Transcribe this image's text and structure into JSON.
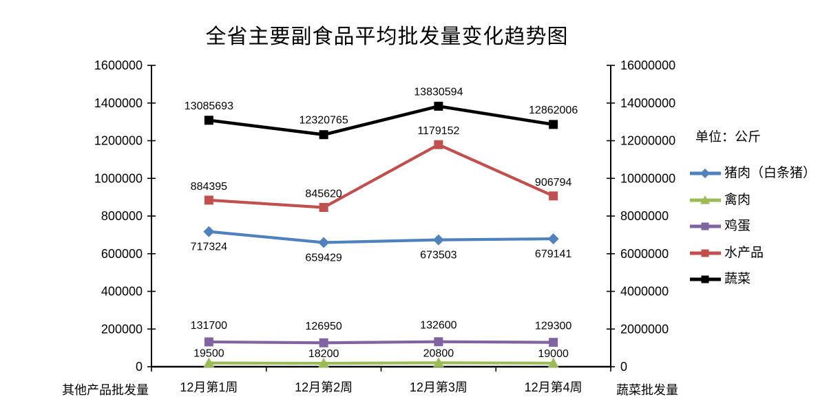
{
  "chart_data": {
    "type": "line",
    "title": "全省主要副食品平均批发量变化趋势图",
    "unit_label": "单位：公斤",
    "categories": [
      "12月第1周",
      "12月第2周",
      "12月第3周",
      "12月第4周"
    ],
    "series": [
      {
        "name": "猪肉（白条猪）",
        "color": "#4F81BD",
        "marker": "diamond",
        "axis": "left",
        "label_position": "below",
        "values": [
          717324,
          659429,
          673503,
          679141
        ]
      },
      {
        "name": "禽肉",
        "color": "#9BBB59",
        "marker": "triangle",
        "axis": "left",
        "label_position": "above",
        "values": [
          19500,
          18200,
          20800,
          19000
        ]
      },
      {
        "name": "鸡蛋",
        "color": "#8064A2",
        "marker": "square",
        "axis": "left",
        "label_position": "above",
        "values": [
          131700,
          126950,
          132600,
          129300
        ]
      },
      {
        "name": "水产品",
        "color": "#C0504D",
        "marker": "square",
        "axis": "left",
        "label_position": "above",
        "values": [
          884395,
          845620,
          1179152,
          906794
        ]
      },
      {
        "name": "蔬菜",
        "color": "#000000",
        "marker": "square",
        "axis": "right",
        "label_position": "above",
        "values": [
          13085693,
          12320765,
          13830594,
          12862006
        ]
      }
    ],
    "left_axis": {
      "title": "其他产品批发量",
      "min": 0,
      "max": 1600000,
      "step": 200000,
      "tick_labels": [
        "0",
        "200000",
        "400000",
        "600000",
        "800000",
        "1000000",
        "1200000",
        "1400000",
        "1600000"
      ]
    },
    "right_axis": {
      "title": "蔬菜批发量",
      "min": 0,
      "max": 16000000,
      "step": 2000000,
      "tick_labels": [
        "0",
        "2000000",
        "4000000",
        "6000000",
        "8000000",
        "10000000",
        "12000000",
        "14000000",
        "16000000"
      ]
    },
    "legend": {
      "position": "right",
      "entries": [
        "猪肉（白条猪）",
        "禽肉",
        "鸡蛋",
        "水产品",
        "蔬菜"
      ]
    },
    "grid": "off",
    "data_labels": "on",
    "axis_color": "#000000",
    "background": "#FFFFFF"
  }
}
